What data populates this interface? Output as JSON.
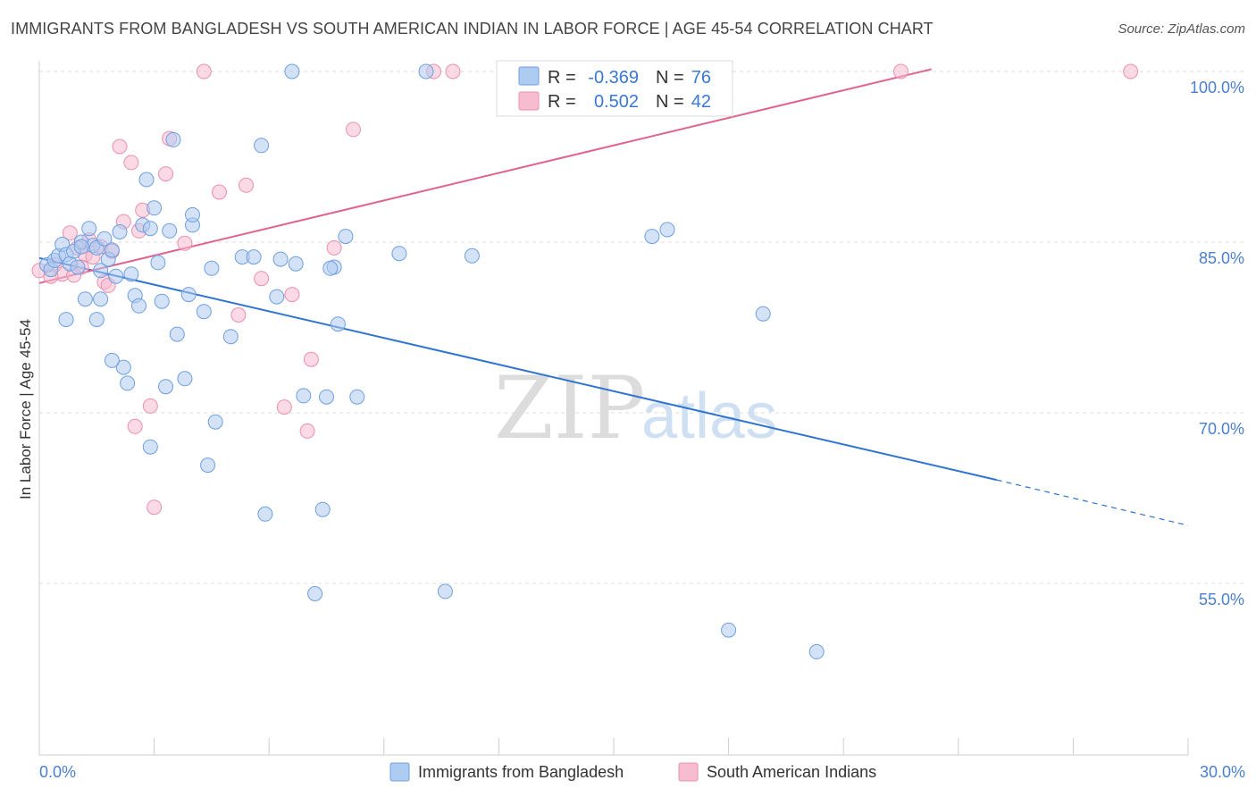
{
  "title": "IMMIGRANTS FROM BANGLADESH VS SOUTH AMERICAN INDIAN IN LABOR FORCE | AGE 45-54 CORRELATION CHART",
  "source": "Source: ZipAtlas.com",
  "watermark": {
    "zip": "ZIP",
    "atlas": "atlas"
  },
  "colors": {
    "blue_fill": "#aecbf1",
    "blue_stroke": "#6f9fe0",
    "blue_line": "#2f74d0",
    "pink_fill": "#f7bcd0",
    "pink_stroke": "#ea8fb0",
    "pink_line": "#e0638f",
    "grid": "#dddddd",
    "tick_label": "#4a7fd0"
  },
  "legend": {
    "r_label": "R =",
    "n_label": "N =",
    "rows": [
      {
        "series": "Immigrants from Bangladesh",
        "r": "-0.369",
        "n": "76"
      },
      {
        "series": "South American Indians",
        "r": "0.502",
        "n": "42"
      }
    ]
  },
  "chart_data": {
    "type": "scatter",
    "title": "IMMIGRANTS FROM BANGLADESH VS SOUTH AMERICAN INDIAN IN LABOR FORCE | AGE 45-54 CORRELATION CHART",
    "xlabel": "",
    "ylabel": "In Labor Force | Age 45-54",
    "xlim": [
      0,
      30
    ],
    "ylim": [
      40,
      101.5
    ],
    "x_tick_labels": [
      "0.0%",
      "30.0%"
    ],
    "y_ticks": [
      55,
      70,
      85,
      100
    ],
    "y_tick_labels": [
      "55.0%",
      "70.0%",
      "85.0%",
      "100.0%"
    ],
    "grid": true,
    "legend_position": "top-center",
    "series": [
      {
        "name": "Immigrants from Bangladesh",
        "color": "#6f9fe0",
        "trend": {
          "x": [
            0.0,
            25.0
          ],
          "y": [
            83.6,
            64.1
          ],
          "dashed_to": [
            30.0,
            60.1
          ]
        },
        "points": [
          [
            0.2,
            83.0
          ],
          [
            0.3,
            82.6
          ],
          [
            0.4,
            83.4
          ],
          [
            0.5,
            83.8
          ],
          [
            0.6,
            84.8
          ],
          [
            0.7,
            83.9
          ],
          [
            0.8,
            83.1
          ],
          [
            0.9,
            84.2
          ],
          [
            1.0,
            82.8
          ],
          [
            1.1,
            85.0
          ],
          [
            1.2,
            80.0
          ],
          [
            1.3,
            86.2
          ],
          [
            1.4,
            84.7
          ],
          [
            1.5,
            84.5
          ],
          [
            1.6,
            82.5
          ],
          [
            1.7,
            85.3
          ],
          [
            1.8,
            83.5
          ],
          [
            1.9,
            84.3
          ],
          [
            2.0,
            82.0
          ],
          [
            2.1,
            85.9
          ],
          [
            2.2,
            74.0
          ],
          [
            2.3,
            72.6
          ],
          [
            2.4,
            82.2
          ],
          [
            2.5,
            80.3
          ],
          [
            2.6,
            79.4
          ],
          [
            2.7,
            86.5
          ],
          [
            2.8,
            90.5
          ],
          [
            2.9,
            86.2
          ],
          [
            3.0,
            88.0
          ],
          [
            3.1,
            83.2
          ],
          [
            3.2,
            79.8
          ],
          [
            3.3,
            72.3
          ],
          [
            3.4,
            86.0
          ],
          [
            3.5,
            94.0
          ],
          [
            3.6,
            76.9
          ],
          [
            3.8,
            73.0
          ],
          [
            4.0,
            86.5
          ],
          [
            4.0,
            87.4
          ],
          [
            4.3,
            78.9
          ],
          [
            4.5,
            82.7
          ],
          [
            4.6,
            69.2
          ],
          [
            5.0,
            76.7
          ],
          [
            5.3,
            83.7
          ],
          [
            5.6,
            83.7
          ],
          [
            5.8,
            93.5
          ],
          [
            5.9,
            61.1
          ],
          [
            6.2,
            80.2
          ],
          [
            6.3,
            83.5
          ],
          [
            6.7,
            83.1
          ],
          [
            6.6,
            100.0
          ],
          [
            6.9,
            71.5
          ],
          [
            7.2,
            54.1
          ],
          [
            7.4,
            61.5
          ],
          [
            7.5,
            71.4
          ],
          [
            7.8,
            77.8
          ],
          [
            7.7,
            82.8
          ],
          [
            8.0,
            85.5
          ],
          [
            8.3,
            71.4
          ],
          [
            9.4,
            84.0
          ],
          [
            10.1,
            100.0
          ],
          [
            10.6,
            54.3
          ],
          [
            11.3,
            83.8
          ],
          [
            16.0,
            85.5
          ],
          [
            16.4,
            86.1
          ],
          [
            18.0,
            50.9
          ],
          [
            18.9,
            78.7
          ],
          [
            20.3,
            49.0
          ],
          [
            1.9,
            74.6
          ],
          [
            1.5,
            78.2
          ],
          [
            1.6,
            80.0
          ],
          [
            3.9,
            80.4
          ],
          [
            4.4,
            65.4
          ],
          [
            7.6,
            82.7
          ],
          [
            2.9,
            67.0
          ],
          [
            0.7,
            78.2
          ],
          [
            1.1,
            84.6
          ]
        ]
      },
      {
        "name": "South American Indians",
        "color": "#ea8fb0",
        "trend": {
          "x": [
            0.0,
            23.3
          ],
          "y": [
            81.4,
            100.2
          ]
        },
        "points": [
          [
            0.0,
            82.5
          ],
          [
            0.4,
            83.0
          ],
          [
            0.6,
            82.2
          ],
          [
            0.8,
            85.8
          ],
          [
            1.0,
            84.5
          ],
          [
            1.2,
            83.9
          ],
          [
            1.4,
            83.7
          ],
          [
            1.6,
            84.6
          ],
          [
            1.7,
            81.5
          ],
          [
            1.8,
            81.2
          ],
          [
            1.9,
            84.2
          ],
          [
            2.1,
            93.4
          ],
          [
            2.2,
            86.8
          ],
          [
            2.4,
            92.0
          ],
          [
            2.5,
            68.8
          ],
          [
            2.6,
            86.0
          ],
          [
            2.7,
            87.8
          ],
          [
            2.9,
            70.6
          ],
          [
            3.0,
            61.7
          ],
          [
            3.3,
            91.0
          ],
          [
            3.4,
            94.1
          ],
          [
            3.8,
            84.9
          ],
          [
            4.3,
            100.0
          ],
          [
            4.7,
            89.4
          ],
          [
            5.2,
            78.6
          ],
          [
            5.4,
            90.0
          ],
          [
            5.8,
            81.8
          ],
          [
            6.4,
            70.5
          ],
          [
            6.6,
            80.4
          ],
          [
            7.1,
            74.7
          ],
          [
            7.0,
            68.4
          ],
          [
            7.7,
            84.5
          ],
          [
            8.2,
            94.9
          ],
          [
            10.3,
            100.0
          ],
          [
            10.8,
            100.0
          ],
          [
            13.8,
            100.0
          ],
          [
            22.5,
            100.0
          ],
          [
            28.5,
            100.0
          ],
          [
            0.3,
            82.0
          ],
          [
            1.1,
            82.8
          ],
          [
            1.3,
            85.2
          ],
          [
            0.9,
            82.1
          ]
        ]
      }
    ]
  }
}
